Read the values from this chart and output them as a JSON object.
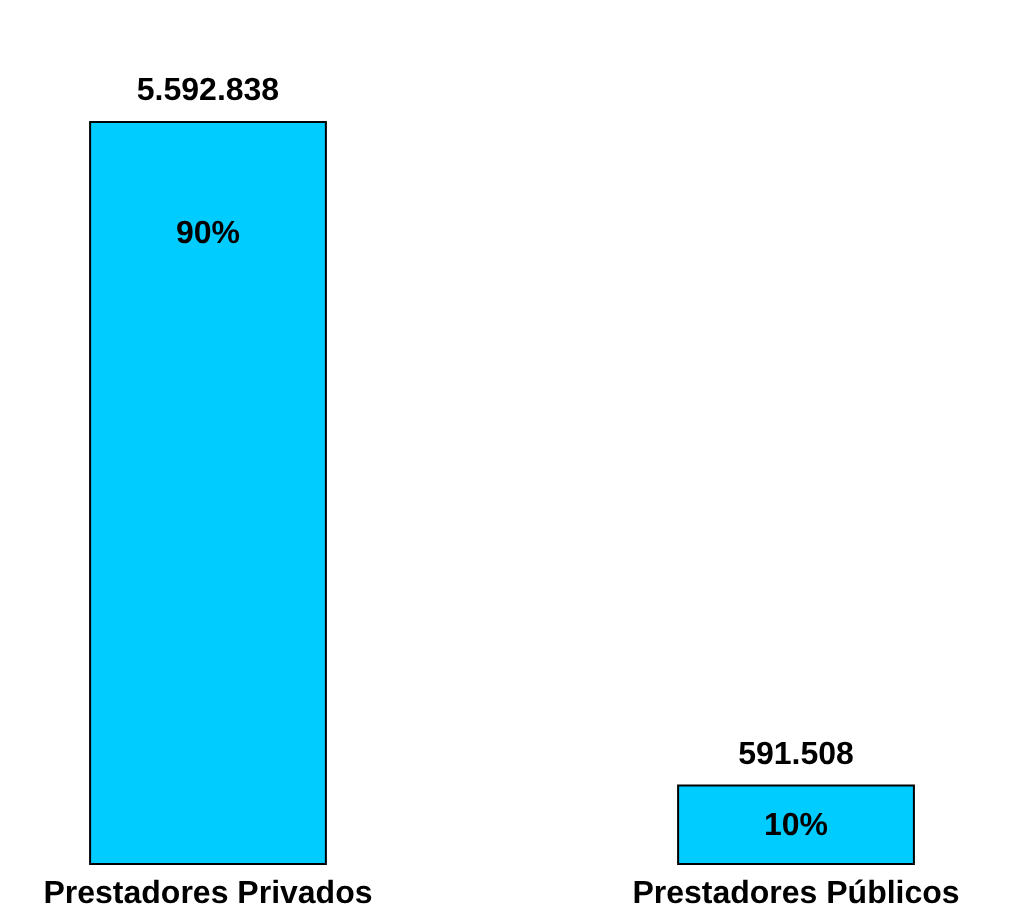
{
  "chart_data": {
    "type": "bar",
    "categories": [
      "Prestadores Privados",
      "Prestadores Públicos"
    ],
    "values": [
      5592838,
      591508
    ],
    "value_labels": [
      "5.592.838",
      "591.508"
    ],
    "color": "#00ccff",
    "tick_labels": "x",
    "annotations": [
      "90%",
      "10%"
    ]
  }
}
